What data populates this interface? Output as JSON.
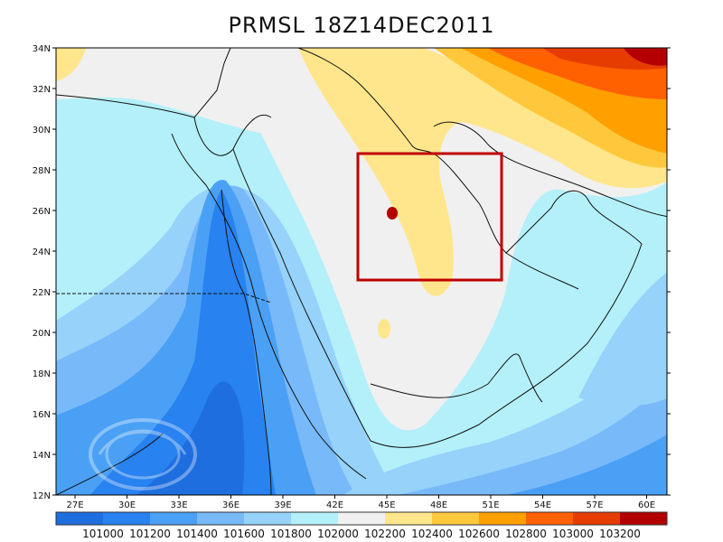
{
  "title": "PRMSL 18Z14DEC2011",
  "lat_labels": [
    "34N",
    "32N",
    "30N",
    "28N",
    "26N",
    "24N",
    "22N",
    "20N",
    "18N",
    "16N",
    "14N",
    "12N"
  ],
  "lon_labels": [
    "27E",
    "30E",
    "33E",
    "36E",
    "39E",
    "42E",
    "45E",
    "48E",
    "51E",
    "54E",
    "57E",
    "60E"
  ],
  "legend": {
    "levels": [
      "101000",
      "101200",
      "101400",
      "101600",
      "101800",
      "102000",
      "102200",
      "102400",
      "102600",
      "102800",
      "103000",
      "103200"
    ],
    "colors": [
      "#1e6ee0",
      "#2882f0",
      "#4aa0f5",
      "#78b9fa",
      "#96d2fa",
      "#b4f0fa",
      "#f0f0f0",
      "#ffe68c",
      "#ffc83c",
      "#ffa000",
      "#ff6000",
      "#e63c00",
      "#b40000"
    ]
  },
  "highlight_box_color": "#c00000"
}
